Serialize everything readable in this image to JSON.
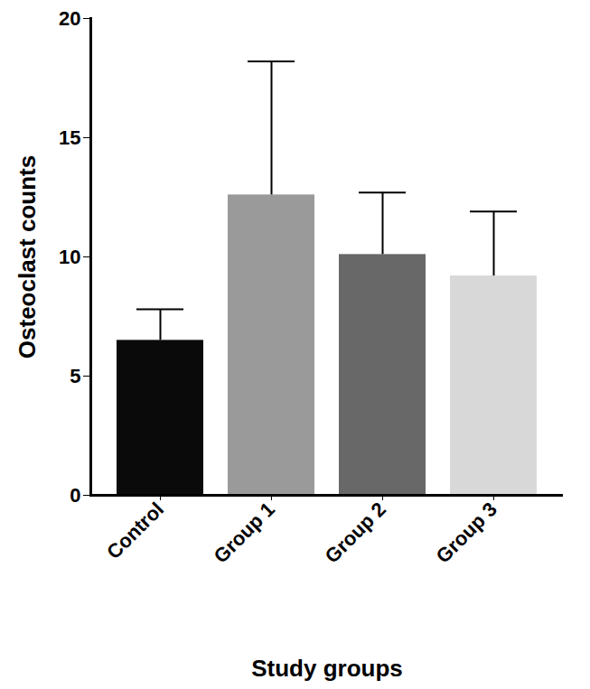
{
  "chart_data": {
    "type": "bar",
    "categories": [
      "Control",
      "Group 1",
      "Group 2",
      "Group 3"
    ],
    "values": [
      6.5,
      12.6,
      10.1,
      9.2
    ],
    "errors": [
      1.3,
      5.6,
      2.6,
      2.7
    ],
    "colors": [
      "#0a0a0a",
      "#9a9a9a",
      "#686868",
      "#d8d8d8"
    ],
    "x_label": "Study groups",
    "y_label": "Osteoclast counts",
    "ylim": [
      0,
      20
    ],
    "yticks": [
      0,
      5,
      10,
      15,
      20
    ],
    "grid": false
  }
}
